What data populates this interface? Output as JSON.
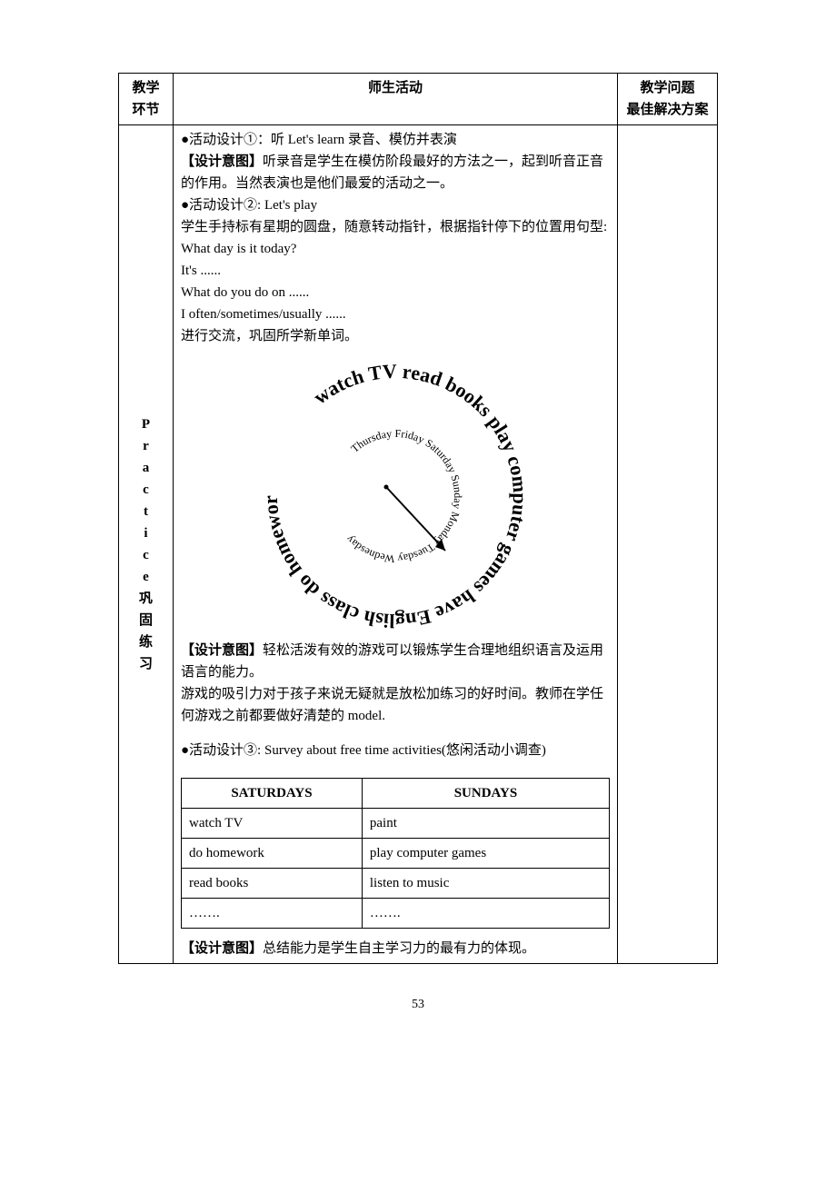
{
  "header": {
    "col1": "教学\n环节",
    "col2": "师生活动",
    "col3": "教学问题\n最佳解决方案"
  },
  "leftLabel": "Practice巩固练习",
  "content": {
    "act1_title": "●活动设计①：听 Let's learn 录音、模仿并表演",
    "act1_intent_label": "【设计意图】",
    "act1_intent": "听录音是学生在模仿阶段最好的方法之一，起到听音正音的作用。当然表演也是他们最爱的活动之一。",
    "act2_title": "●活动设计②: Let's play",
    "act2_desc": "学生手持标有星期的圆盘，随意转动指针，根据指针停下的位置用句型:",
    "q1": "What day is it today?",
    "q2": "It's ......",
    "q3": "What do you do on    ......",
    "q4": "I often/sometimes/usually ......",
    "q5": "进行交流，巩固所学新单词。",
    "spinner_outer": "watch TV  read books  play computer games  have English class  do homework",
    "spinner_inner": "Thursday Friday Saturday Sunday Monday Tuesday Wednesday",
    "intent2_label": "【设计意图】",
    "intent2_line1": "轻松活泼有效的游戏可以锻炼学生合理地组织语言及运用语言的能力。",
    "intent2_line2": "游戏的吸引力对于孩子来说无疑就是放松加练习的好时间。教师在学任何游戏之前都要做好清楚的 model.",
    "act3_title": "●活动设计③: Survey about free time activities(悠闲活动小调查)",
    "survey": {
      "h1": "SATURDAYS",
      "h2": "SUNDAYS",
      "rows": [
        [
          "watch TV",
          "paint"
        ],
        [
          "do homework",
          "play computer games"
        ],
        [
          "read books",
          "listen to music"
        ],
        [
          "…….",
          "……."
        ]
      ]
    },
    "intent3_label": "【设计意图】",
    "intent3": "总结能力是学生自主学习力的最有力的体现。"
  },
  "pageNum": "53"
}
